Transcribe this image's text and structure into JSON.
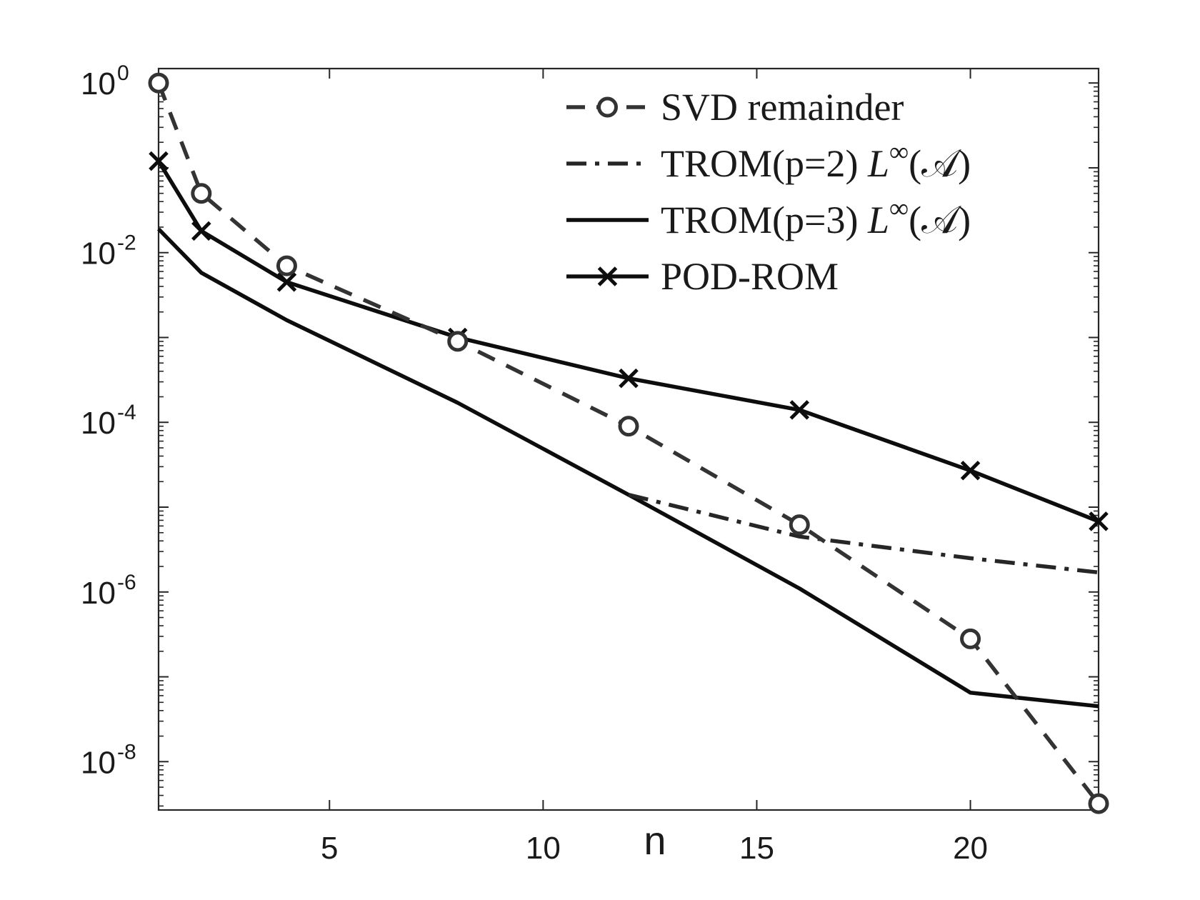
{
  "chart_data": {
    "type": "line",
    "xlabel": "n",
    "ylabel": "",
    "xlim": [
      1,
      23
    ],
    "ylim_exp": [
      -8.57,
      0.17
    ],
    "yscale": "log",
    "grid": false,
    "legend_position": "top-right",
    "x_ticks": [
      5,
      10,
      15,
      20
    ],
    "y_ticks": [
      {
        "base": "10",
        "exp": "0",
        "value": 0
      },
      {
        "base": "10",
        "exp": "-2",
        "value": -2
      },
      {
        "base": "10",
        "exp": "-4",
        "value": -4
      },
      {
        "base": "10",
        "exp": "-6",
        "value": -6
      },
      {
        "base": "10",
        "exp": "-8",
        "value": -8
      }
    ],
    "series": [
      {
        "name": "SVD remainder",
        "style": "dashed",
        "marker": "circle",
        "color": "#333333",
        "x": [
          1,
          2,
          4,
          8,
          12,
          16,
          20,
          23
        ],
        "y": [
          1.0,
          0.05,
          0.007,
          0.0009,
          9e-05,
          6.2e-06,
          2.8e-07,
          3.2e-09
        ]
      },
      {
        "name": "TROM(p=2) L∞(A)",
        "legend_main": "TROM(p=2) ",
        "legend_math": "L",
        "legend_sup": "∞",
        "legend_tail": "(𝒜)",
        "style": "dashdot",
        "marker": "none",
        "color": "#262626",
        "x": [
          12,
          16,
          20,
          23
        ],
        "y": [
          1.4e-05,
          4.5e-06,
          2.5e-06,
          1.7e-06
        ]
      },
      {
        "name": "TROM(p=3) L∞(A)",
        "legend_main": "TROM(p=3) ",
        "legend_math": "L",
        "legend_sup": "∞",
        "legend_tail": "(𝒜)",
        "style": "solid",
        "marker": "none",
        "color": "#0d0d0d",
        "x": [
          1,
          2,
          4,
          8,
          12,
          16,
          20,
          23
        ],
        "y": [
          0.019,
          0.0058,
          0.0016,
          0.00017,
          1.4e-05,
          1.1e-06,
          6.5e-08,
          4.5e-08
        ]
      },
      {
        "name": "POD-ROM",
        "style": "solid",
        "marker": "x",
        "color": "#0d0d0d",
        "x": [
          1,
          2,
          4,
          8,
          12,
          16,
          20,
          23
        ],
        "y": [
          0.12,
          0.018,
          0.0045,
          0.001,
          0.00033,
          0.00014,
          2.7e-05,
          6.8e-06
        ]
      }
    ]
  }
}
